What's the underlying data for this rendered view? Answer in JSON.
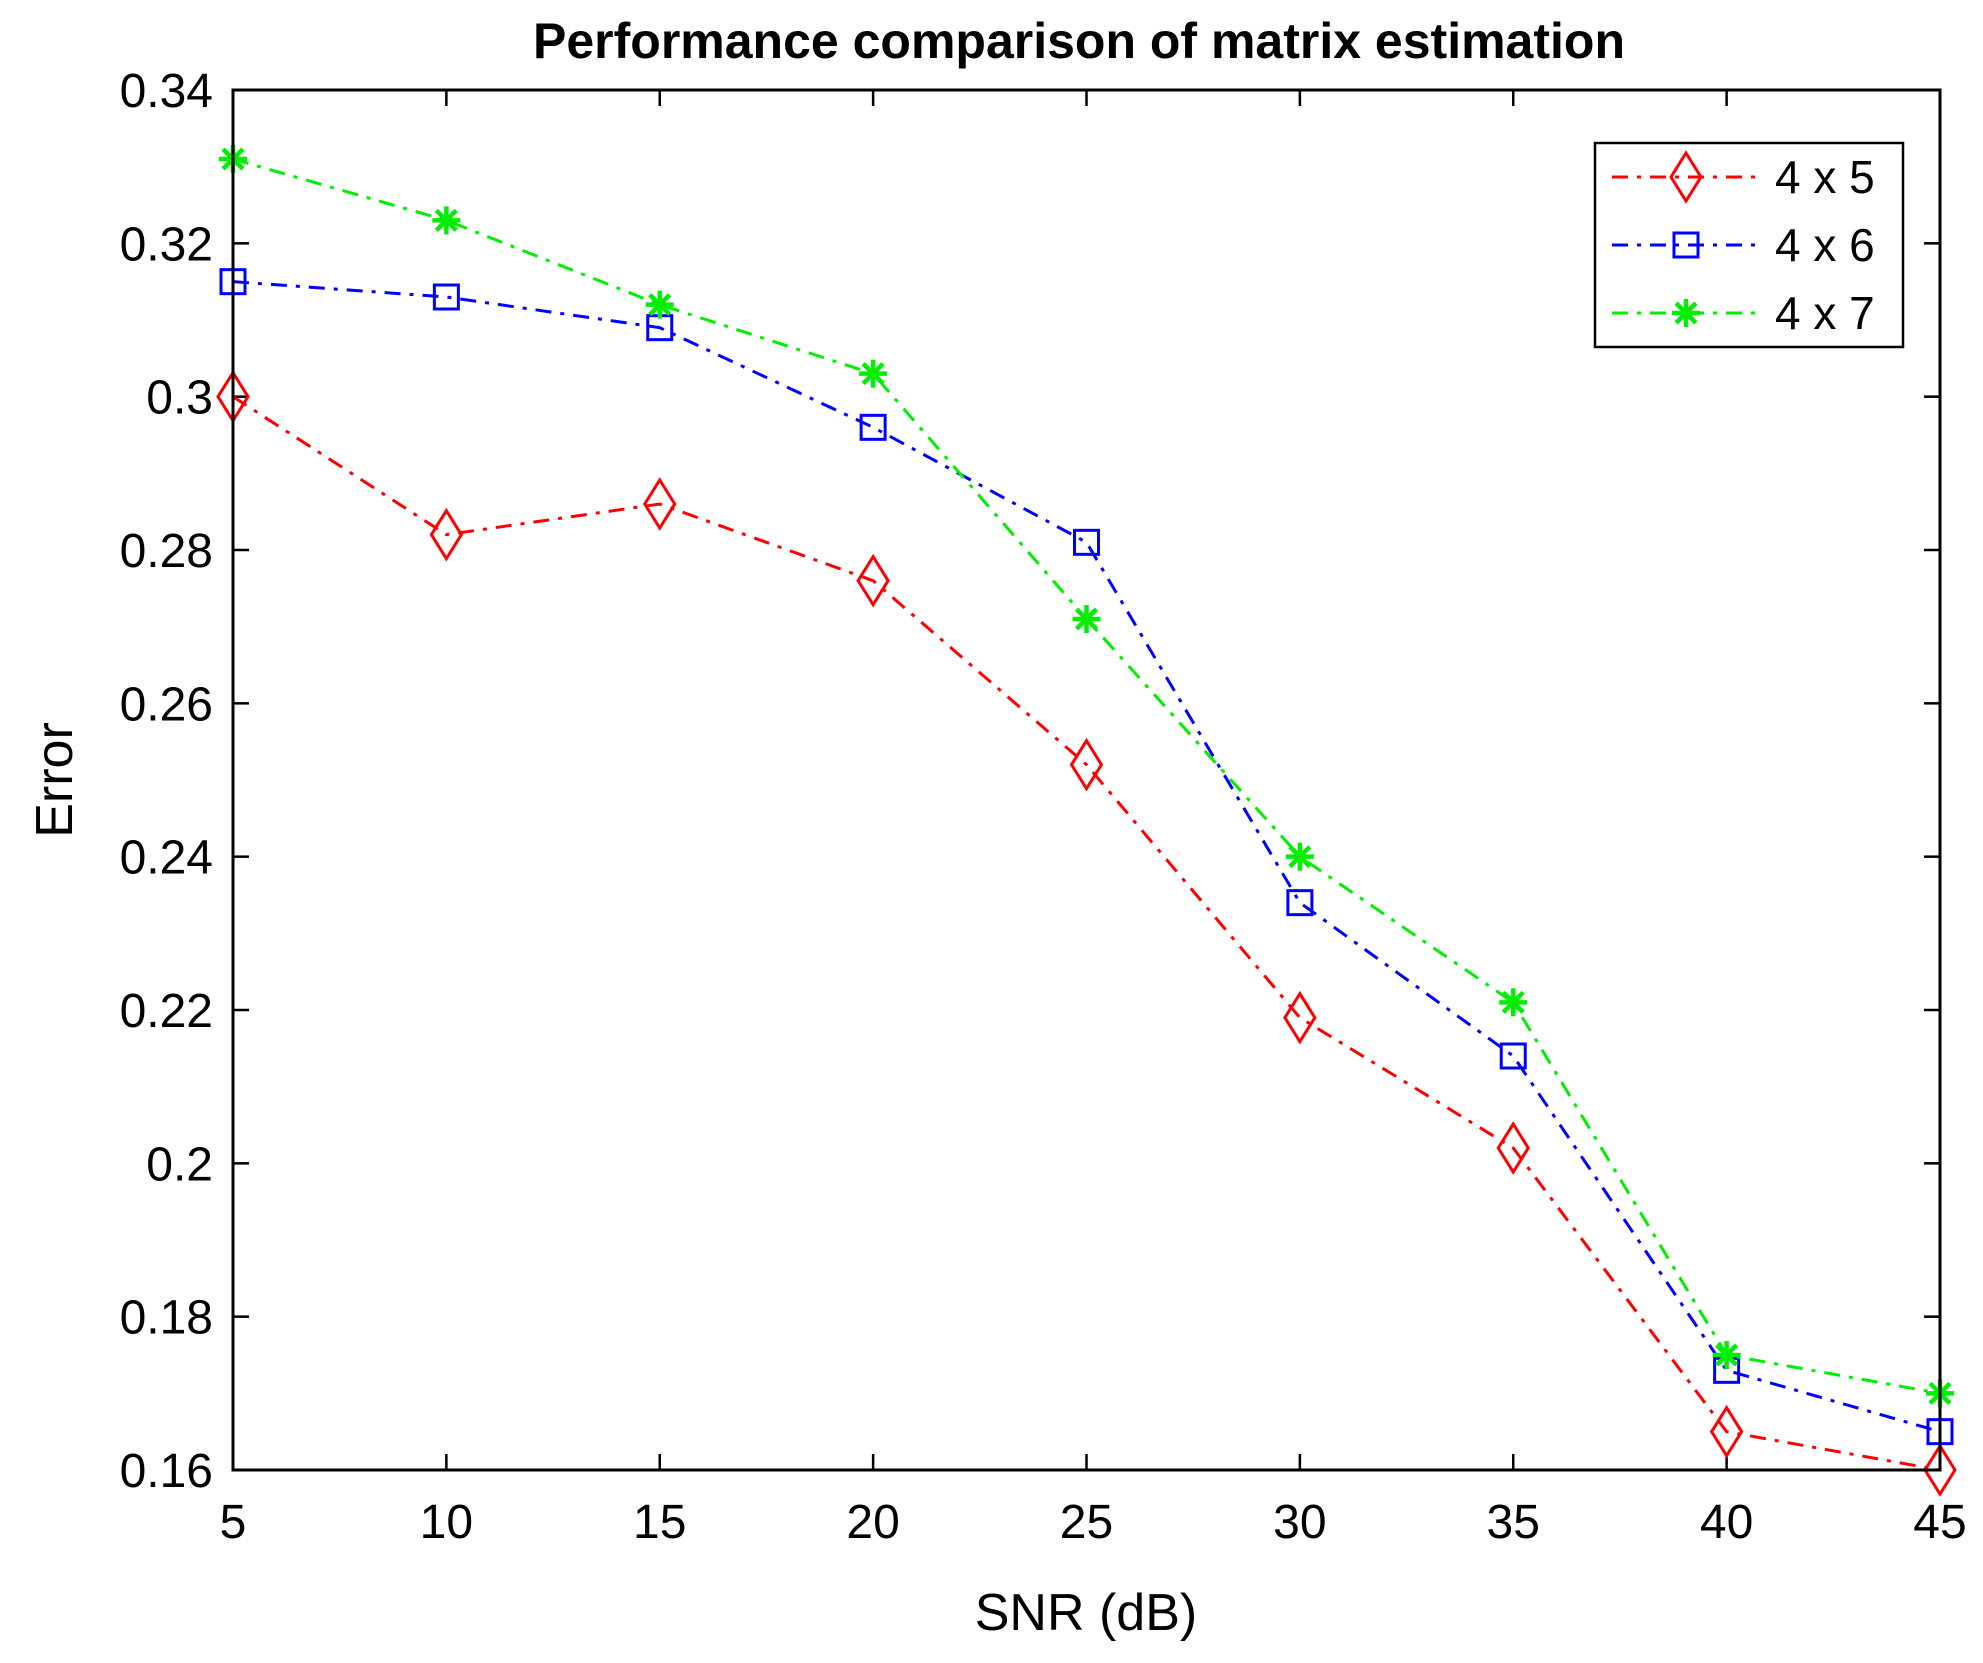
{
  "chart_data": {
    "type": "line",
    "title": "Performance comparison of matrix estimation",
    "xlabel": "SNR (dB)",
    "ylabel": "Error",
    "xlim": [
      5,
      45
    ],
    "ylim": [
      0.16,
      0.34
    ],
    "x_ticks": [
      "5",
      "10",
      "15",
      "20",
      "25",
      "30",
      "35",
      "40",
      "45"
    ],
    "y_ticks": [
      "0.16",
      "0.18",
      "0.2",
      "0.22",
      "0.24",
      "0.26",
      "0.28",
      "0.3",
      "0.32",
      "0.34"
    ],
    "x": [
      5,
      10,
      15,
      20,
      25,
      30,
      35,
      40,
      45
    ],
    "legend_position": "top-right",
    "series": [
      {
        "name": "4 x 5",
        "color": "#ff0000",
        "marker": "diamond",
        "line_style": "dash-dot",
        "values": [
          0.3,
          0.282,
          0.286,
          0.276,
          0.252,
          0.219,
          0.202,
          0.165,
          0.16
        ]
      },
      {
        "name": "4 x 6",
        "color": "#0000ff",
        "marker": "square",
        "line_style": "dash-dot",
        "values": [
          0.315,
          0.313,
          0.309,
          0.296,
          0.281,
          0.234,
          0.214,
          0.173,
          0.165
        ]
      },
      {
        "name": "4 x 7",
        "color": "#00ee00",
        "marker": "asterisk",
        "line_style": "dash-dot",
        "values": [
          0.331,
          0.323,
          0.312,
          0.303,
          0.271,
          0.24,
          0.221,
          0.175,
          0.17
        ]
      }
    ]
  }
}
